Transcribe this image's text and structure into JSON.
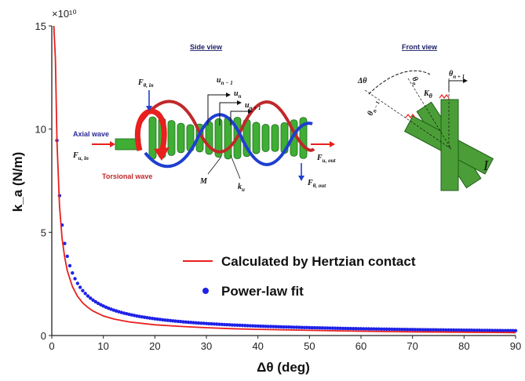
{
  "chart_data": {
    "type": "line",
    "xlabel": "Δθ (deg)",
    "ylabel": "k_a (N/m)",
    "y_multiplier": "×10¹⁰",
    "xlim": [
      0,
      90
    ],
    "ylim": [
      0,
      15
    ],
    "x_ticks": [
      0,
      10,
      20,
      30,
      40,
      50,
      60,
      70,
      80,
      90
    ],
    "y_ticks": [
      0,
      5,
      10,
      15
    ],
    "grid": false,
    "legend_position": "bottom-right",
    "series": [
      {
        "name": "Calculated by Hertzian contact",
        "style": "line",
        "color": "#e8201e",
        "x": [
          0.4,
          0.7,
          1,
          1.5,
          2,
          2.5,
          3,
          4,
          5,
          6,
          7,
          8,
          10,
          12,
          15,
          20,
          25,
          30,
          35,
          40,
          50,
          60,
          70,
          80,
          90
        ],
        "y": [
          15.0,
          13.4,
          9.4,
          6.3,
          4.7,
          3.8,
          3.15,
          2.37,
          1.9,
          1.58,
          1.36,
          1.19,
          0.95,
          0.8,
          0.66,
          0.52,
          0.44,
          0.38,
          0.33,
          0.3,
          0.25,
          0.21,
          0.18,
          0.16,
          0.14
        ]
      },
      {
        "name": "Power-law fit",
        "style": "markers",
        "color": "#1f22e6",
        "model": {
          "a": 9.45,
          "b": -0.82,
          "x_start": 0.5,
          "x_end": 90,
          "step": 0.5
        }
      }
    ]
  },
  "inset": {
    "side_view_title": "Side view",
    "front_view_title": "Front view",
    "axial_wave": "Axial wave",
    "torsional_wave": "Torsional wave",
    "f_u_in": "F",
    "f_u_in_sub": "u, in",
    "f_theta_in": "F",
    "f_theta_in_sub": "θ, in",
    "f_u_out": "F",
    "f_u_out_sub": "u, out",
    "f_theta_out": "F",
    "f_theta_out_sub": "θ, out",
    "u_nm1": "u",
    "u_nm1_sub": "n − 1",
    "u_n": "u",
    "u_n_sub": "n",
    "u_np1": "u",
    "u_np1_sub": "n + 1",
    "mass": "M",
    "k_u": "k",
    "k_u_sub": "u",
    "delta_theta": "Δθ",
    "theta_n": "θ",
    "theta_n_sub": "n",
    "theta_nm1": "θ",
    "theta_nm1_sub": "n − 1",
    "theta_np1": "θ",
    "theta_np1_sub": "n + 1",
    "k_theta": "K",
    "k_theta_sub": "θ",
    "inertia": "I"
  },
  "colors": {
    "axis": "#222222",
    "rod_green": "#3fae34",
    "rod_dark": "#1f6a1c",
    "helix_red": "#c0282a",
    "helix_blue": "#1f3fd0",
    "arrow_red": "#e8201e"
  }
}
